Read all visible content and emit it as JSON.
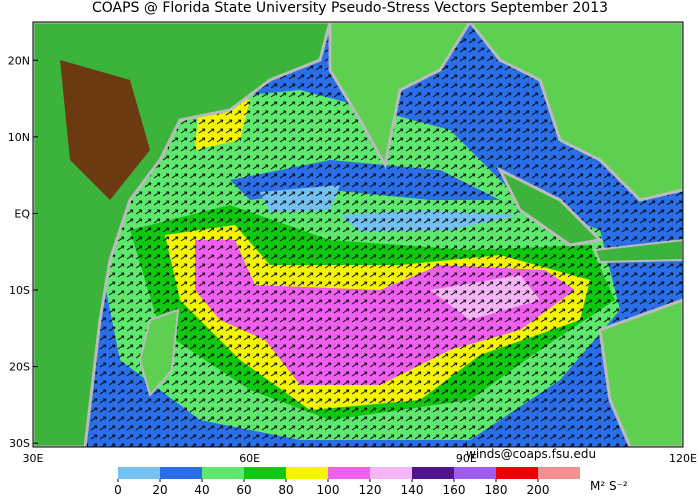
{
  "header": {
    "title": "COAPS @ Florida State University Pseudo-Stress Vectors September 2013"
  },
  "map": {
    "lat_ticks": [
      {
        "value": 20,
        "label": "20N"
      },
      {
        "value": 10,
        "label": "10N"
      },
      {
        "value": 0,
        "label": "EQ"
      },
      {
        "value": -10,
        "label": "10S"
      },
      {
        "value": -20,
        "label": "20S"
      },
      {
        "value": -30,
        "label": "30S"
      }
    ],
    "lon_ticks": [
      {
        "value": 30,
        "label": "30E"
      },
      {
        "value": 60,
        "label": "60E"
      },
      {
        "value": 90,
        "label": "90E"
      },
      {
        "value": 120,
        "label": "120E"
      }
    ],
    "credit": "winds@coaps.fsu.edu"
  },
  "colorbar": {
    "ticks": [
      0,
      20,
      40,
      60,
      80,
      100,
      120,
      140,
      160,
      180,
      200
    ],
    "colors": [
      "#74c0f0",
      "#2a6ee8",
      "#5ee86e",
      "#10c810",
      "#f5f500",
      "#f060f0",
      "#f5b4f5",
      "#50148c",
      "#a05af0",
      "#f00000",
      "#f59090"
    ],
    "unit": "M² S⁻²"
  }
}
